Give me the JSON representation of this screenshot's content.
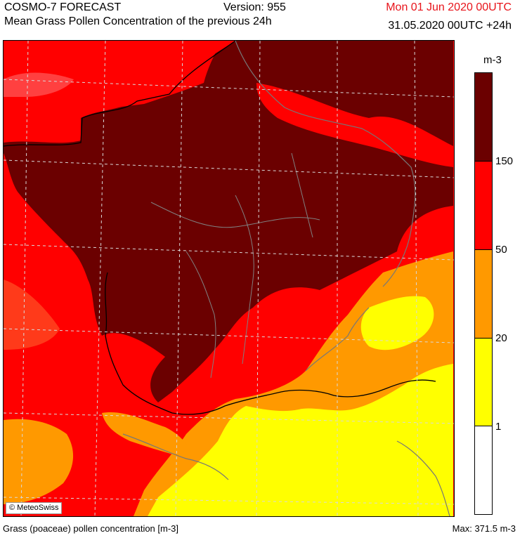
{
  "header": {
    "model": "COSMO-7 FORECAST",
    "version": "Version: 955",
    "title": "Mean Grass Pollen Concentration of the previous 24h",
    "date": "Mon 01 Jun 2020 00UTC",
    "valid": "31.05.2020 00UTC +24h"
  },
  "map": {
    "copyright": "© MeteoSwiss"
  },
  "legend": {
    "unit": "m-3",
    "ticks": [
      "150",
      "50",
      "20",
      "1"
    ],
    "colors": {
      "very_high": "#6b0000",
      "high": "#ff0000",
      "moderate": "#ff9900",
      "low": "#ffff00",
      "none": "#ffffff"
    }
  },
  "footer": {
    "left": "Grass (poaceae) pollen concentration [m-3]",
    "right": "Max:  371.5 m-3"
  }
}
